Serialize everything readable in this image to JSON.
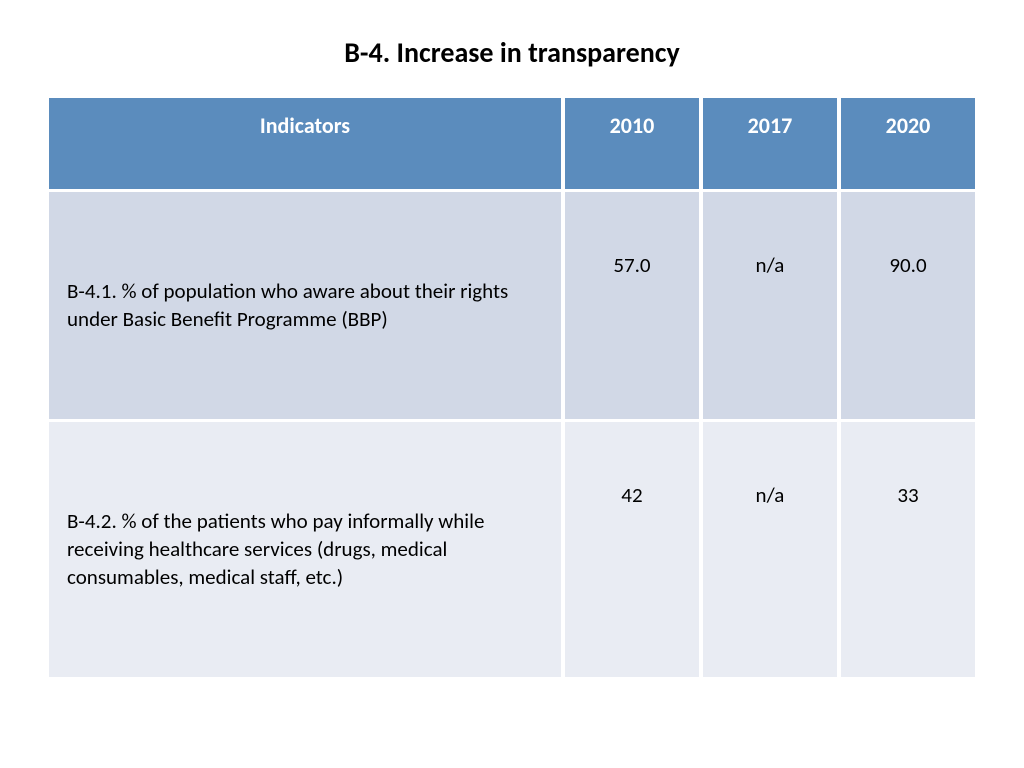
{
  "title": "B-4. Increase in transparency",
  "table": {
    "header": {
      "indicators": "Indicators",
      "y2010": "2010",
      "y2017": "2017",
      "y2020": "2020"
    },
    "rows": [
      {
        "indicator": "B-4.1. % of population who aware about their rights under Basic Benefit Programme (BBP)",
        "v2010": "57.0",
        "v2017": "n/a",
        "v2020": "90.0",
        "bg": "#d1d8e6"
      },
      {
        "indicator": "B-4.2. % of the patients who pay informally while receiving healthcare services (drugs, medical consumables, medical staff, etc.)",
        "v2010": "42",
        "v2017": "n/a",
        "v2020": "33",
        "bg": "#e9ecf3"
      }
    ],
    "header_bg": "#5b8cbd",
    "header_fg": "#ffffff",
    "title_color": "#000000",
    "title_fontsize": 28,
    "header_fontsize": 22,
    "cell_fontsize": 21
  }
}
